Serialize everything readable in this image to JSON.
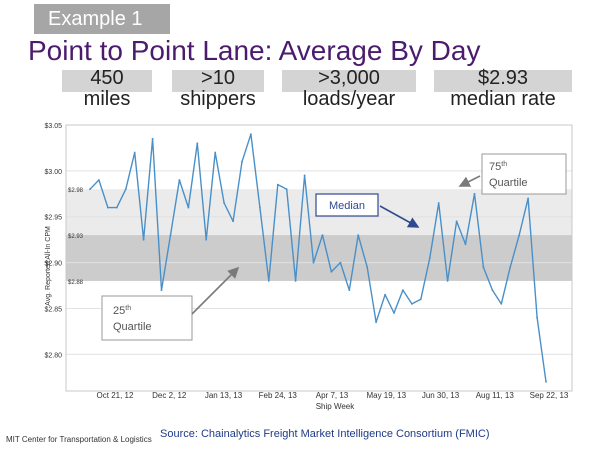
{
  "header": {
    "tag": "Example 1",
    "title": "Point to Point Lane: Average By Day"
  },
  "stats": [
    {
      "value": "450",
      "unit": "miles"
    },
    {
      "value": ">10",
      "unit": "shippers"
    },
    {
      "value": ">3,000",
      "unit": "loads/year"
    },
    {
      "value": "$2.93",
      "unit": "median rate"
    }
  ],
  "chart_data": {
    "type": "line",
    "xlabel": "Ship Week",
    "ylabel": "Avg. Reported All-In CPM",
    "ylim": [
      2.76,
      3.05
    ],
    "yticks": [
      {
        "value": 3.05,
        "label": "$3.05"
      },
      {
        "value": 3.0,
        "label": "$3.00"
      },
      {
        "value": 2.95,
        "label": "$2.95"
      },
      {
        "value": 2.9,
        "label": "$2.90"
      },
      {
        "value": 2.85,
        "label": "$2.85"
      },
      {
        "value": 2.8,
        "label": "$2.80"
      }
    ],
    "xticks": [
      "Oct 21, 12",
      "Dec 2, 12",
      "Jan 13, 13",
      "Feb 24, 13",
      "Apr 7, 13",
      "May 19, 13",
      "Jun 30, 13",
      "Aug 11, 13",
      "Sep 22, 13"
    ],
    "grid": true,
    "line_color": "#4a90c8",
    "bands": [
      {
        "from": 2.93,
        "to": 2.98,
        "color": "#ebebeb"
      },
      {
        "from": 2.88,
        "to": 2.93,
        "color": "#cccccc"
      }
    ],
    "reference_lines": [
      {
        "value": 2.98,
        "label": "$2.98"
      },
      {
        "value": 2.93,
        "label": "$2.93"
      },
      {
        "value": 2.88,
        "label": "$2.88"
      }
    ],
    "annotations": {
      "median": "Median",
      "q75_number": "75",
      "q75_suffix": "th",
      "q75_word": "Quartile",
      "q25_number": "25",
      "q25_suffix": "th",
      "q25_word": "Quartile"
    },
    "series": [
      {
        "values": [
          2.98,
          2.99,
          2.96,
          2.96,
          2.98,
          3.02,
          2.925,
          3.035,
          2.87,
          2.93,
          2.99,
          2.96,
          3.03,
          2.925,
          3.02,
          2.965,
          2.945,
          3.01,
          3.04,
          2.96,
          2.88,
          2.985,
          2.98,
          2.88,
          2.995,
          2.9,
          2.93,
          2.89,
          2.9,
          2.87,
          2.93,
          2.895,
          2.835,
          2.865,
          2.845,
          2.87,
          2.855,
          2.86,
          2.905,
          2.965,
          2.88,
          2.945,
          2.92,
          2.975,
          2.895,
          2.87,
          2.855,
          2.895,
          2.93,
          2.97,
          2.84,
          2.77
        ]
      }
    ]
  },
  "footer": {
    "org": "MIT Center for Transportation & Logistics",
    "source": "Source:  Chainalytics Freight Market Intelligence Consortium (FMIC)"
  }
}
